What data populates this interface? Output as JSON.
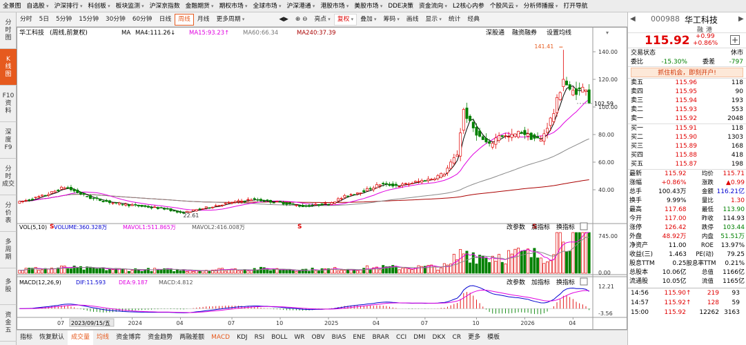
{
  "menu": [
    {
      "label": "全景图",
      "dd": false
    },
    {
      "label": "自选股",
      "dd": true
    },
    {
      "label": "沪深排行",
      "dd": true
    },
    {
      "label": "科创板",
      "dd": true
    },
    {
      "label": "板块监测",
      "dd": true
    },
    {
      "label": "沪深京指数",
      "dd": false
    },
    {
      "label": "金融期货",
      "dd": true
    },
    {
      "label": "期权市场",
      "dd": true
    },
    {
      "label": "全球市场",
      "dd": true
    },
    {
      "label": "沪深港通",
      "dd": true
    },
    {
      "label": "港股市场",
      "dd": true
    },
    {
      "label": "美股市场",
      "dd": true
    },
    {
      "label": "DDE决策",
      "dd": false
    },
    {
      "label": "资金流向",
      "dd": true
    },
    {
      "label": "L2核心内参",
      "dd": false
    },
    {
      "label": "个股风云",
      "dd": true
    },
    {
      "label": "分析师播报",
      "dd": true
    },
    {
      "label": "打开导航",
      "dd": false
    }
  ],
  "leftbar": [
    {
      "name": "fenshi",
      "l1": "分",
      "l2": "时",
      "l3": "图"
    },
    {
      "name": "kxian",
      "l1": "K",
      "l2": "线",
      "l3": "图",
      "active": true
    },
    {
      "name": "f10",
      "l1": "F10",
      "l2": "资",
      "l3": "料"
    },
    {
      "name": "shendu",
      "l1": "深",
      "l2": "度",
      "l3": "F9"
    },
    {
      "name": "fenshichengjiao",
      "l1": "分",
      "l2": "时",
      "l3": "成交"
    },
    {
      "name": "fenjiabiao",
      "l1": "分",
      "l2": "价",
      "l3": "表"
    },
    {
      "name": "duozhouqi",
      "l1": "多",
      "l2": "周",
      "l3": "期"
    },
    {
      "name": "duogu",
      "l1": "多",
      "l2": "股",
      "l3": ""
    },
    {
      "name": "zijin",
      "l1": "资",
      "l2": "金",
      "l3": "五"
    }
  ],
  "toolbar": {
    "periods": [
      "分时",
      "5日",
      "5分钟",
      "15分钟",
      "30分钟",
      "60分钟",
      "日线",
      "周线",
      "月线"
    ],
    "active_period": "周线",
    "more": "更多周期",
    "tools": [
      {
        "label": "亮点",
        "dd": true
      },
      {
        "label": "复权",
        "dd": true,
        "sel": true
      },
      {
        "label": "叠加",
        "dd": true
      },
      {
        "label": "筹码",
        "dd": true
      },
      {
        "label": "画线",
        "dd": false
      },
      {
        "label": "显示",
        "dd": true
      },
      {
        "label": "统计",
        "dd": false
      },
      {
        "label": "经典",
        "dd": false
      }
    ]
  },
  "main": {
    "title": "华工科技",
    "mode": "(周线,前复权)",
    "ma": [
      {
        "label": "MA",
        "value": "",
        "color": "#000000"
      },
      {
        "label": "MA4:",
        "value": "111.26",
        "color": "#000000",
        "arrow": "↓"
      },
      {
        "label": "MA15:",
        "value": "93.23",
        "color": "#e000e0",
        "arrow": "↑"
      },
      {
        "label": "MA60:",
        "value": "66.34",
        "color": "#777777",
        "arrow": ""
      },
      {
        "label": "MA240:",
        "value": "37.39",
        "color": "#aa0000",
        "arrow": ""
      }
    ],
    "actions": [
      "深股通",
      "融资融券",
      "设置均线"
    ],
    "high_label": "141.41",
    "low_label": "22.61",
    "current_price_label": "102.59",
    "yticks": [
      {
        "v": 140,
        "t": "140.00"
      },
      {
        "v": 120,
        "t": "120.00"
      },
      {
        "v": 100,
        "t": "100.00"
      },
      {
        "v": 80,
        "t": "80.00"
      },
      {
        "v": 60,
        "t": "60.00"
      },
      {
        "v": 40,
        "t": "40.00"
      }
    ],
    "markers": [
      "S",
      "S",
      "S"
    ]
  },
  "vol": {
    "title": "VOL(5,10)",
    "volume": "VOLUME:360.328万",
    "mavol1": "MAVOL1:511.865万",
    "mavol2": "MAVOL2:416.008万",
    "buttons": [
      "改参数",
      "加指标",
      "换指标"
    ],
    "ytop": "745.00",
    "ybottom": "0.00"
  },
  "macd": {
    "title": "MACD(12,26,9)",
    "dif": "DIF:11.593",
    "dea": "DEA:9.187",
    "macd": "MACD:4.812",
    "buttons": [
      "改参数",
      "加指标",
      "换指标"
    ],
    "ytop": "12.21",
    "ybottom": "-3.56"
  },
  "timeaxis": [
    "07",
    "2023/09/15/五",
    "2024",
    "04",
    "07",
    "10",
    "2025",
    "04",
    "07",
    "10",
    "2026",
    "04"
  ],
  "bottom_tabs": [
    "指标",
    "恢复默认",
    "成交量",
    "均线",
    "资金博弈",
    "资金趋势",
    "两融差额",
    "MACD",
    "KDJ",
    "RSI",
    "BOLL",
    "WR",
    "OBV",
    "BIAS",
    "ENE",
    "BRAR",
    "CCI",
    "DMI",
    "DKX",
    "CR",
    "更多",
    "模板"
  ],
  "active_tab": "成交量",
  "chart_data": {
    "type": "candlestick",
    "categories_start": "2023/06",
    "categories_end": "2026/04",
    "x_ticks": [
      "07",
      "2024",
      "04",
      "07",
      "10",
      "2025",
      "04",
      "07",
      "10",
      "2026",
      "04"
    ],
    "y_range": [
      18,
      148
    ],
    "high": 141.41,
    "low": 22.61,
    "last_close": 102.59,
    "ma": {
      "MA4": 111.26,
      "MA15": 93.23,
      "MA60": 66.34,
      "MA240": 37.39
    },
    "volume_last": "360.328万",
    "volume_range": [
      0,
      745
    ],
    "macd": {
      "DIF": 11.593,
      "DEA": 9.187,
      "MACD": 4.812
    },
    "macd_range": [
      -3.56,
      12.21
    ]
  },
  "right": {
    "code": "000988",
    "name": "华工科技",
    "tags": [
      "融",
      "港"
    ],
    "price": "115.92",
    "change": "+0.99",
    "pct": "+0.86%",
    "status_label": "交易状态",
    "status": "休市",
    "weibi_label": "委比",
    "weibi": "-15.30%",
    "weicha_label": "委差",
    "weicha": "-797",
    "ad": "抓住机会，即刻开户!",
    "asks": [
      {
        "l": "卖五",
        "p": "115.96",
        "v": "118"
      },
      {
        "l": "卖四",
        "p": "115.95",
        "v": "90"
      },
      {
        "l": "卖三",
        "p": "115.94",
        "v": "193"
      },
      {
        "l": "卖二",
        "p": "115.93",
        "v": "553"
      },
      {
        "l": "卖一",
        "p": "115.92",
        "v": "2048"
      }
    ],
    "bids": [
      {
        "l": "买一",
        "p": "115.91",
        "v": "118"
      },
      {
        "l": "买二",
        "p": "115.90",
        "v": "1303"
      },
      {
        "l": "买三",
        "p": "115.89",
        "v": "168"
      },
      {
        "l": "买四",
        "p": "115.88",
        "v": "418"
      },
      {
        "l": "买五",
        "p": "115.87",
        "v": "198"
      }
    ],
    "stats": [
      [
        "最新",
        "115.92",
        "red",
        "均价",
        "115.71",
        "red"
      ],
      [
        "涨幅",
        "+0.86%",
        "red",
        "涨跌",
        "▲0.99",
        "red"
      ],
      [
        "总手",
        "100.43万",
        "k",
        "金额",
        "116.21亿",
        "blu"
      ],
      [
        "换手",
        "9.99%",
        "k",
        "量比",
        "1.30",
        "red"
      ],
      [
        "最高",
        "117.68",
        "red",
        "最低",
        "113.90",
        "grn"
      ],
      [
        "今开",
        "117.00",
        "red",
        "昨收",
        "114.93",
        "k"
      ],
      [
        "涨停",
        "126.42",
        "red",
        "跌停",
        "103.44",
        "grn"
      ],
      [
        "外盘",
        "48.92万",
        "red",
        "内盘",
        "51.51万",
        "grn"
      ],
      [
        "净资产",
        "11.00",
        "k",
        "ROE",
        "13.97%",
        "k"
      ],
      [
        "收益(三)",
        "1.463",
        "k",
        "PE(动)",
        "79.25",
        "k"
      ],
      [
        "股息TTM",
        "0.25",
        "k",
        "股息率TTM",
        "0.21%",
        "k"
      ],
      [
        "总股本",
        "10.06亿",
        "k",
        "总值",
        "1166亿",
        "k"
      ],
      [
        "流通股",
        "10.05亿",
        "k",
        "流值",
        "1165亿",
        "k"
      ]
    ],
    "ticks": [
      {
        "t": "14:56",
        "p": "115.90",
        "a": "↑",
        "v": "219",
        "n": "93"
      },
      {
        "t": "14:57",
        "p": "115.92",
        "a": "↑",
        "v": "128",
        "n": "59"
      },
      {
        "t": "15:00",
        "p": "115.92",
        "a": "",
        "v": "12262",
        "n": "3163"
      }
    ]
  }
}
